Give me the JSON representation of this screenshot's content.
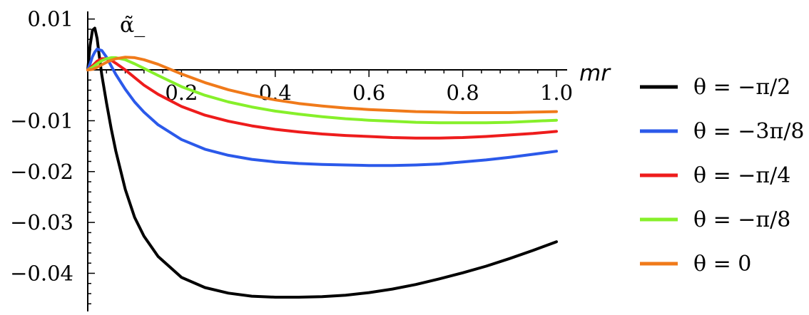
{
  "chart_data": {
    "type": "line",
    "title": "",
    "xlabel": "mr",
    "ylabel": "α̃_",
    "xlim": [
      0.0,
      1.0
    ],
    "ylim": [
      -0.0475,
      0.0115
    ],
    "x_ticks": [
      0.2,
      0.4,
      0.6,
      0.8,
      1.0
    ],
    "x_tick_labels": [
      "0.2",
      "0.4",
      "0.6",
      "0.8",
      "1.0"
    ],
    "y_ticks": [
      0.01,
      -0.01,
      -0.02,
      -0.03,
      -0.04
    ],
    "y_tick_labels": [
      "0.01",
      "−0.01",
      "−0.02",
      "−0.03",
      "−0.04"
    ],
    "grid": false,
    "legend_position": "right",
    "series": [
      {
        "name": "θ = −π/2",
        "color": "#000000",
        "x": [
          0.0,
          0.005,
          0.01,
          0.015,
          0.02,
          0.025,
          0.03,
          0.04,
          0.05,
          0.06,
          0.08,
          0.1,
          0.12,
          0.15,
          0.2,
          0.25,
          0.3,
          0.35,
          0.4,
          0.45,
          0.5,
          0.55,
          0.6,
          0.65,
          0.7,
          0.75,
          0.8,
          0.85,
          0.9,
          0.95,
          1.0
        ],
        "y": [
          0.0,
          0.0048,
          0.0078,
          0.0082,
          0.0062,
          0.0025,
          -0.001,
          -0.0065,
          -0.0115,
          -0.016,
          -0.0235,
          -0.029,
          -0.0327,
          -0.0367,
          -0.0408,
          -0.0428,
          -0.0439,
          -0.0445,
          -0.0447,
          -0.0447,
          -0.0446,
          -0.0443,
          -0.0438,
          -0.0431,
          -0.0422,
          -0.0411,
          -0.0399,
          -0.0386,
          -0.0371,
          -0.0355,
          -0.0338
        ]
      },
      {
        "name": "θ = −3π/8",
        "color": "#2b59ea",
        "x": [
          0.0,
          0.005,
          0.01,
          0.015,
          0.02,
          0.03,
          0.04,
          0.05,
          0.06,
          0.08,
          0.1,
          0.12,
          0.15,
          0.2,
          0.25,
          0.3,
          0.35,
          0.4,
          0.45,
          0.5,
          0.55,
          0.6,
          0.65,
          0.7,
          0.75,
          0.8,
          0.85,
          0.9,
          0.95,
          1.0
        ],
        "y": [
          0.0,
          0.0012,
          0.0026,
          0.0035,
          0.0041,
          0.0038,
          0.0025,
          0.0008,
          -0.0009,
          -0.0038,
          -0.0063,
          -0.0083,
          -0.0108,
          -0.0137,
          -0.0156,
          -0.0168,
          -0.0176,
          -0.0181,
          -0.0184,
          -0.0186,
          -0.0187,
          -0.0188,
          -0.0188,
          -0.0187,
          -0.0185,
          -0.0181,
          -0.0177,
          -0.0172,
          -0.0166,
          -0.016
        ]
      },
      {
        "name": "θ = −π/4",
        "color": "#ee1c1c",
        "x": [
          0.0,
          0.01,
          0.02,
          0.03,
          0.04,
          0.05,
          0.06,
          0.08,
          0.1,
          0.12,
          0.15,
          0.2,
          0.25,
          0.3,
          0.35,
          0.4,
          0.45,
          0.5,
          0.55,
          0.6,
          0.65,
          0.7,
          0.75,
          0.8,
          0.85,
          0.9,
          0.95,
          1.0
        ],
        "y": [
          0.0,
          0.0008,
          0.0017,
          0.0022,
          0.0022,
          0.0019,
          0.0013,
          0.0,
          -0.0015,
          -0.003,
          -0.0048,
          -0.0072,
          -0.0089,
          -0.0101,
          -0.011,
          -0.0117,
          -0.0122,
          -0.0126,
          -0.0129,
          -0.0131,
          -0.0133,
          -0.0134,
          -0.0134,
          -0.0133,
          -0.0131,
          -0.0128,
          -0.0125,
          -0.0121
        ]
      },
      {
        "name": "θ = −π/8",
        "color": "#86f02a",
        "x": [
          0.0,
          0.01,
          0.02,
          0.03,
          0.04,
          0.05,
          0.06,
          0.08,
          0.1,
          0.12,
          0.15,
          0.2,
          0.25,
          0.3,
          0.35,
          0.4,
          0.45,
          0.5,
          0.55,
          0.6,
          0.65,
          0.7,
          0.75,
          0.8,
          0.85,
          0.9,
          0.95,
          1.0
        ],
        "y": [
          0.0,
          0.0005,
          0.0012,
          0.0018,
          0.0022,
          0.0024,
          0.0024,
          0.002,
          0.0012,
          0.0003,
          -0.0011,
          -0.0033,
          -0.005,
          -0.0063,
          -0.0073,
          -0.0081,
          -0.0087,
          -0.0092,
          -0.0096,
          -0.0099,
          -0.0101,
          -0.0103,
          -0.0104,
          -0.0104,
          -0.0104,
          -0.0103,
          -0.0101,
          -0.0099
        ]
      },
      {
        "name": "θ = 0",
        "color": "#f07a1a",
        "x": [
          0.0,
          0.01,
          0.02,
          0.03,
          0.04,
          0.05,
          0.06,
          0.08,
          0.1,
          0.12,
          0.15,
          0.2,
          0.25,
          0.3,
          0.35,
          0.4,
          0.45,
          0.5,
          0.55,
          0.6,
          0.65,
          0.7,
          0.75,
          0.8,
          0.85,
          0.9,
          0.95,
          1.0
        ],
        "y": [
          0.0,
          0.0001,
          0.0005,
          0.001,
          0.0015,
          0.0019,
          0.0022,
          0.0025,
          0.0024,
          0.002,
          0.0011,
          -0.0008,
          -0.0025,
          -0.0039,
          -0.005,
          -0.0059,
          -0.0066,
          -0.0071,
          -0.0075,
          -0.0078,
          -0.008,
          -0.0082,
          -0.0083,
          -0.0084,
          -0.0084,
          -0.0084,
          -0.0083,
          -0.0082
        ]
      }
    ]
  }
}
